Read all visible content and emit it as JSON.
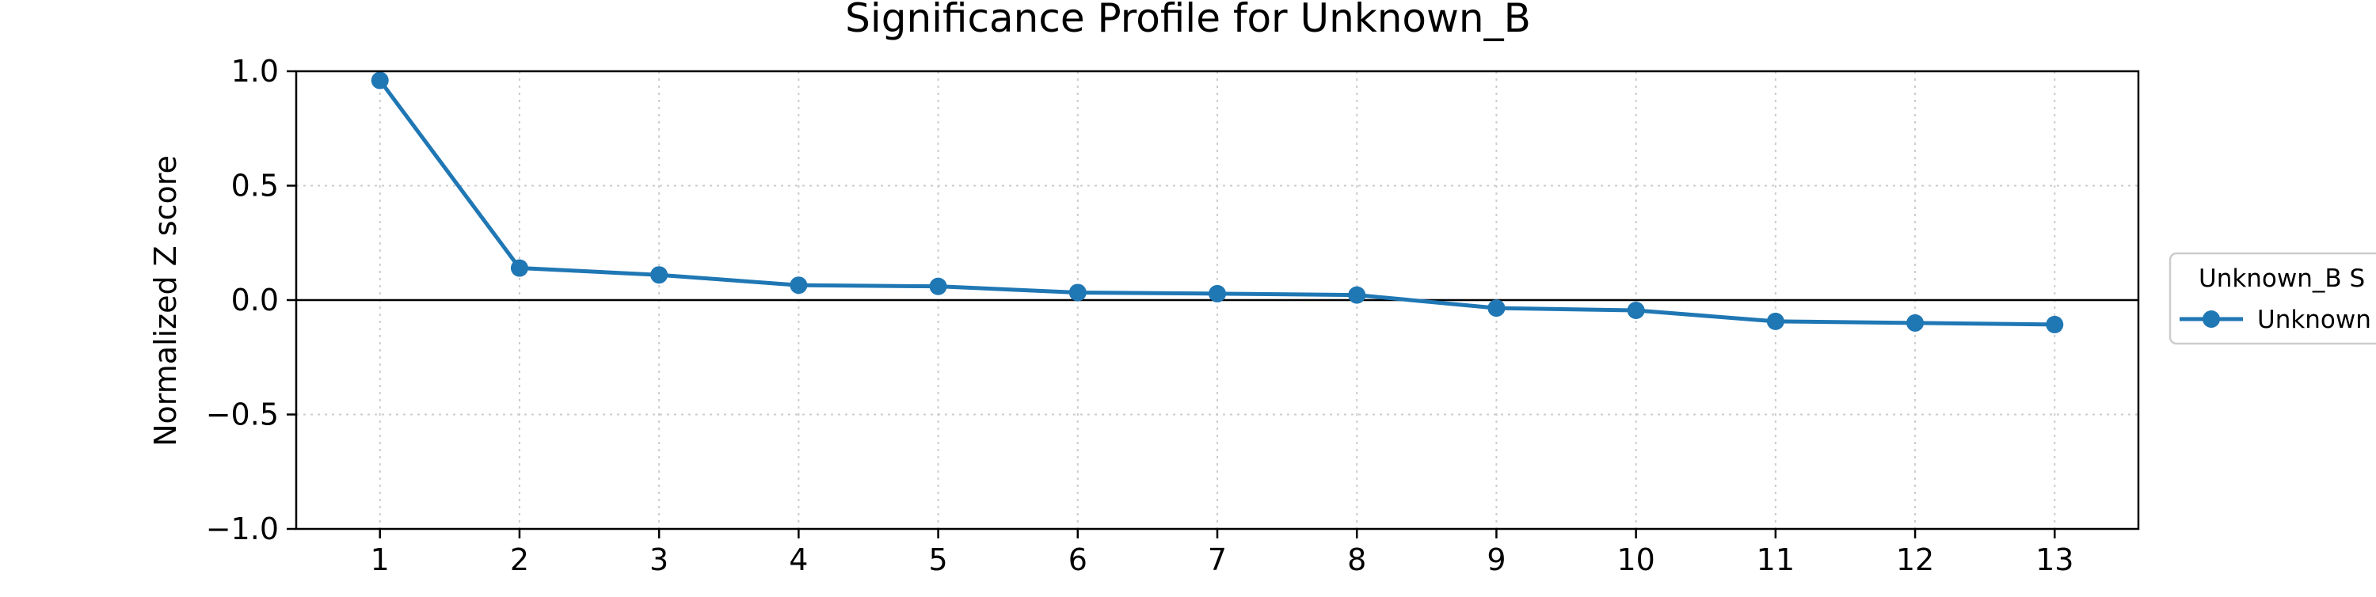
{
  "chart_data": {
    "type": "line",
    "title": "Significance Profile for Unknown_B",
    "xlabel": "",
    "ylabel": "Normalized Z score",
    "x": [
      1,
      2,
      3,
      4,
      5,
      6,
      7,
      8,
      9,
      10,
      11,
      12,
      13
    ],
    "x_tick_labels": [
      "1",
      "2",
      "3",
      "4",
      "5",
      "6",
      "7",
      "8",
      "9",
      "10",
      "11",
      "12",
      "13"
    ],
    "y_ticks": [
      -1.0,
      -0.5,
      0.0,
      0.5,
      1.0
    ],
    "y_tick_labels": [
      "−1.0",
      "−0.5",
      "0.0",
      "0.5",
      "1.0"
    ],
    "xlim": [
      0.4,
      13.6
    ],
    "ylim": [
      -1.0,
      1.0
    ],
    "grid": true,
    "zero_line": true,
    "legend": {
      "title": "Unknown_B S",
      "placement": "right-outside",
      "entries": [
        "Unknown"
      ]
    },
    "series": [
      {
        "name": "Unknown",
        "color": "#1f77b4",
        "marker": "circle",
        "values": [
          0.96,
          0.14,
          0.11,
          0.065,
          0.06,
          0.033,
          0.028,
          0.022,
          -0.035,
          -0.045,
          -0.093,
          -0.1,
          -0.107
        ]
      }
    ]
  }
}
